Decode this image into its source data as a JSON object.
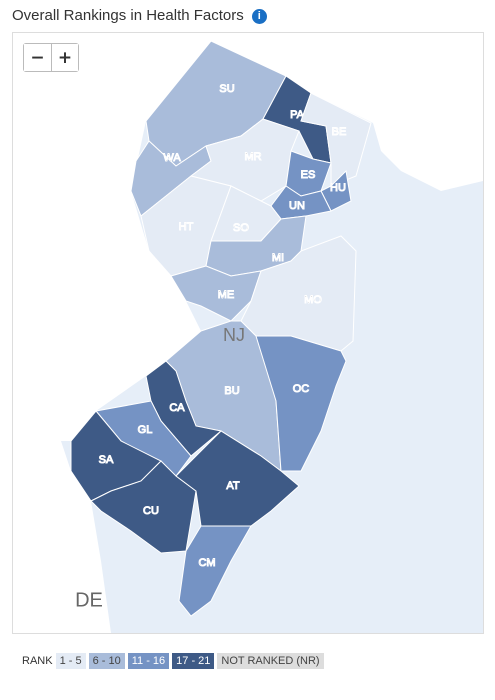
{
  "title": "Overall Rankings in Health Factors",
  "info_icon": "i",
  "zoom": {
    "out": "−",
    "in": "+"
  },
  "state_label": "NJ",
  "neighbor_label": "DE",
  "counties": [
    {
      "label": "SU",
      "color": "#a9bcda"
    },
    {
      "label": "PA",
      "color": "#3e5a86"
    },
    {
      "label": "BE",
      "color": "#e4ebf5"
    },
    {
      "label": "WA",
      "color": "#a9bcda"
    },
    {
      "label": "MR",
      "color": "#e4ebf5"
    },
    {
      "label": "ES",
      "color": "#7593c4"
    },
    {
      "label": "HU",
      "color": "#7593c4"
    },
    {
      "label": "UN",
      "color": "#7593c4"
    },
    {
      "label": "HT",
      "color": "#e4ebf5"
    },
    {
      "label": "SO",
      "color": "#e4ebf5"
    },
    {
      "label": "MI",
      "color": "#a9bcda"
    },
    {
      "label": "ME",
      "color": "#a9bcda"
    },
    {
      "label": "MO",
      "color": "#e4ebf5"
    },
    {
      "label": "BU",
      "color": "#a9bcda"
    },
    {
      "label": "OC",
      "color": "#7593c4"
    },
    {
      "label": "CA",
      "color": "#3e5a86"
    },
    {
      "label": "GL",
      "color": "#7593c4"
    },
    {
      "label": "SA",
      "color": "#3e5a86"
    },
    {
      "label": "CU",
      "color": "#3e5a86"
    },
    {
      "label": "AT",
      "color": "#3e5a86"
    },
    {
      "label": "CM",
      "color": "#7593c4"
    }
  ],
  "legend": {
    "title": "RANK",
    "items": [
      {
        "label": "1 - 5",
        "color": "#e4ebf5"
      },
      {
        "label": "6 - 10",
        "color": "#a9bcda"
      },
      {
        "label": "11 - 16",
        "color": "#7593c4"
      },
      {
        "label": "17 - 21",
        "color": "#3e5a86"
      },
      {
        "label": "NOT RANKED (NR)",
        "color": "#dddddd"
      }
    ]
  }
}
